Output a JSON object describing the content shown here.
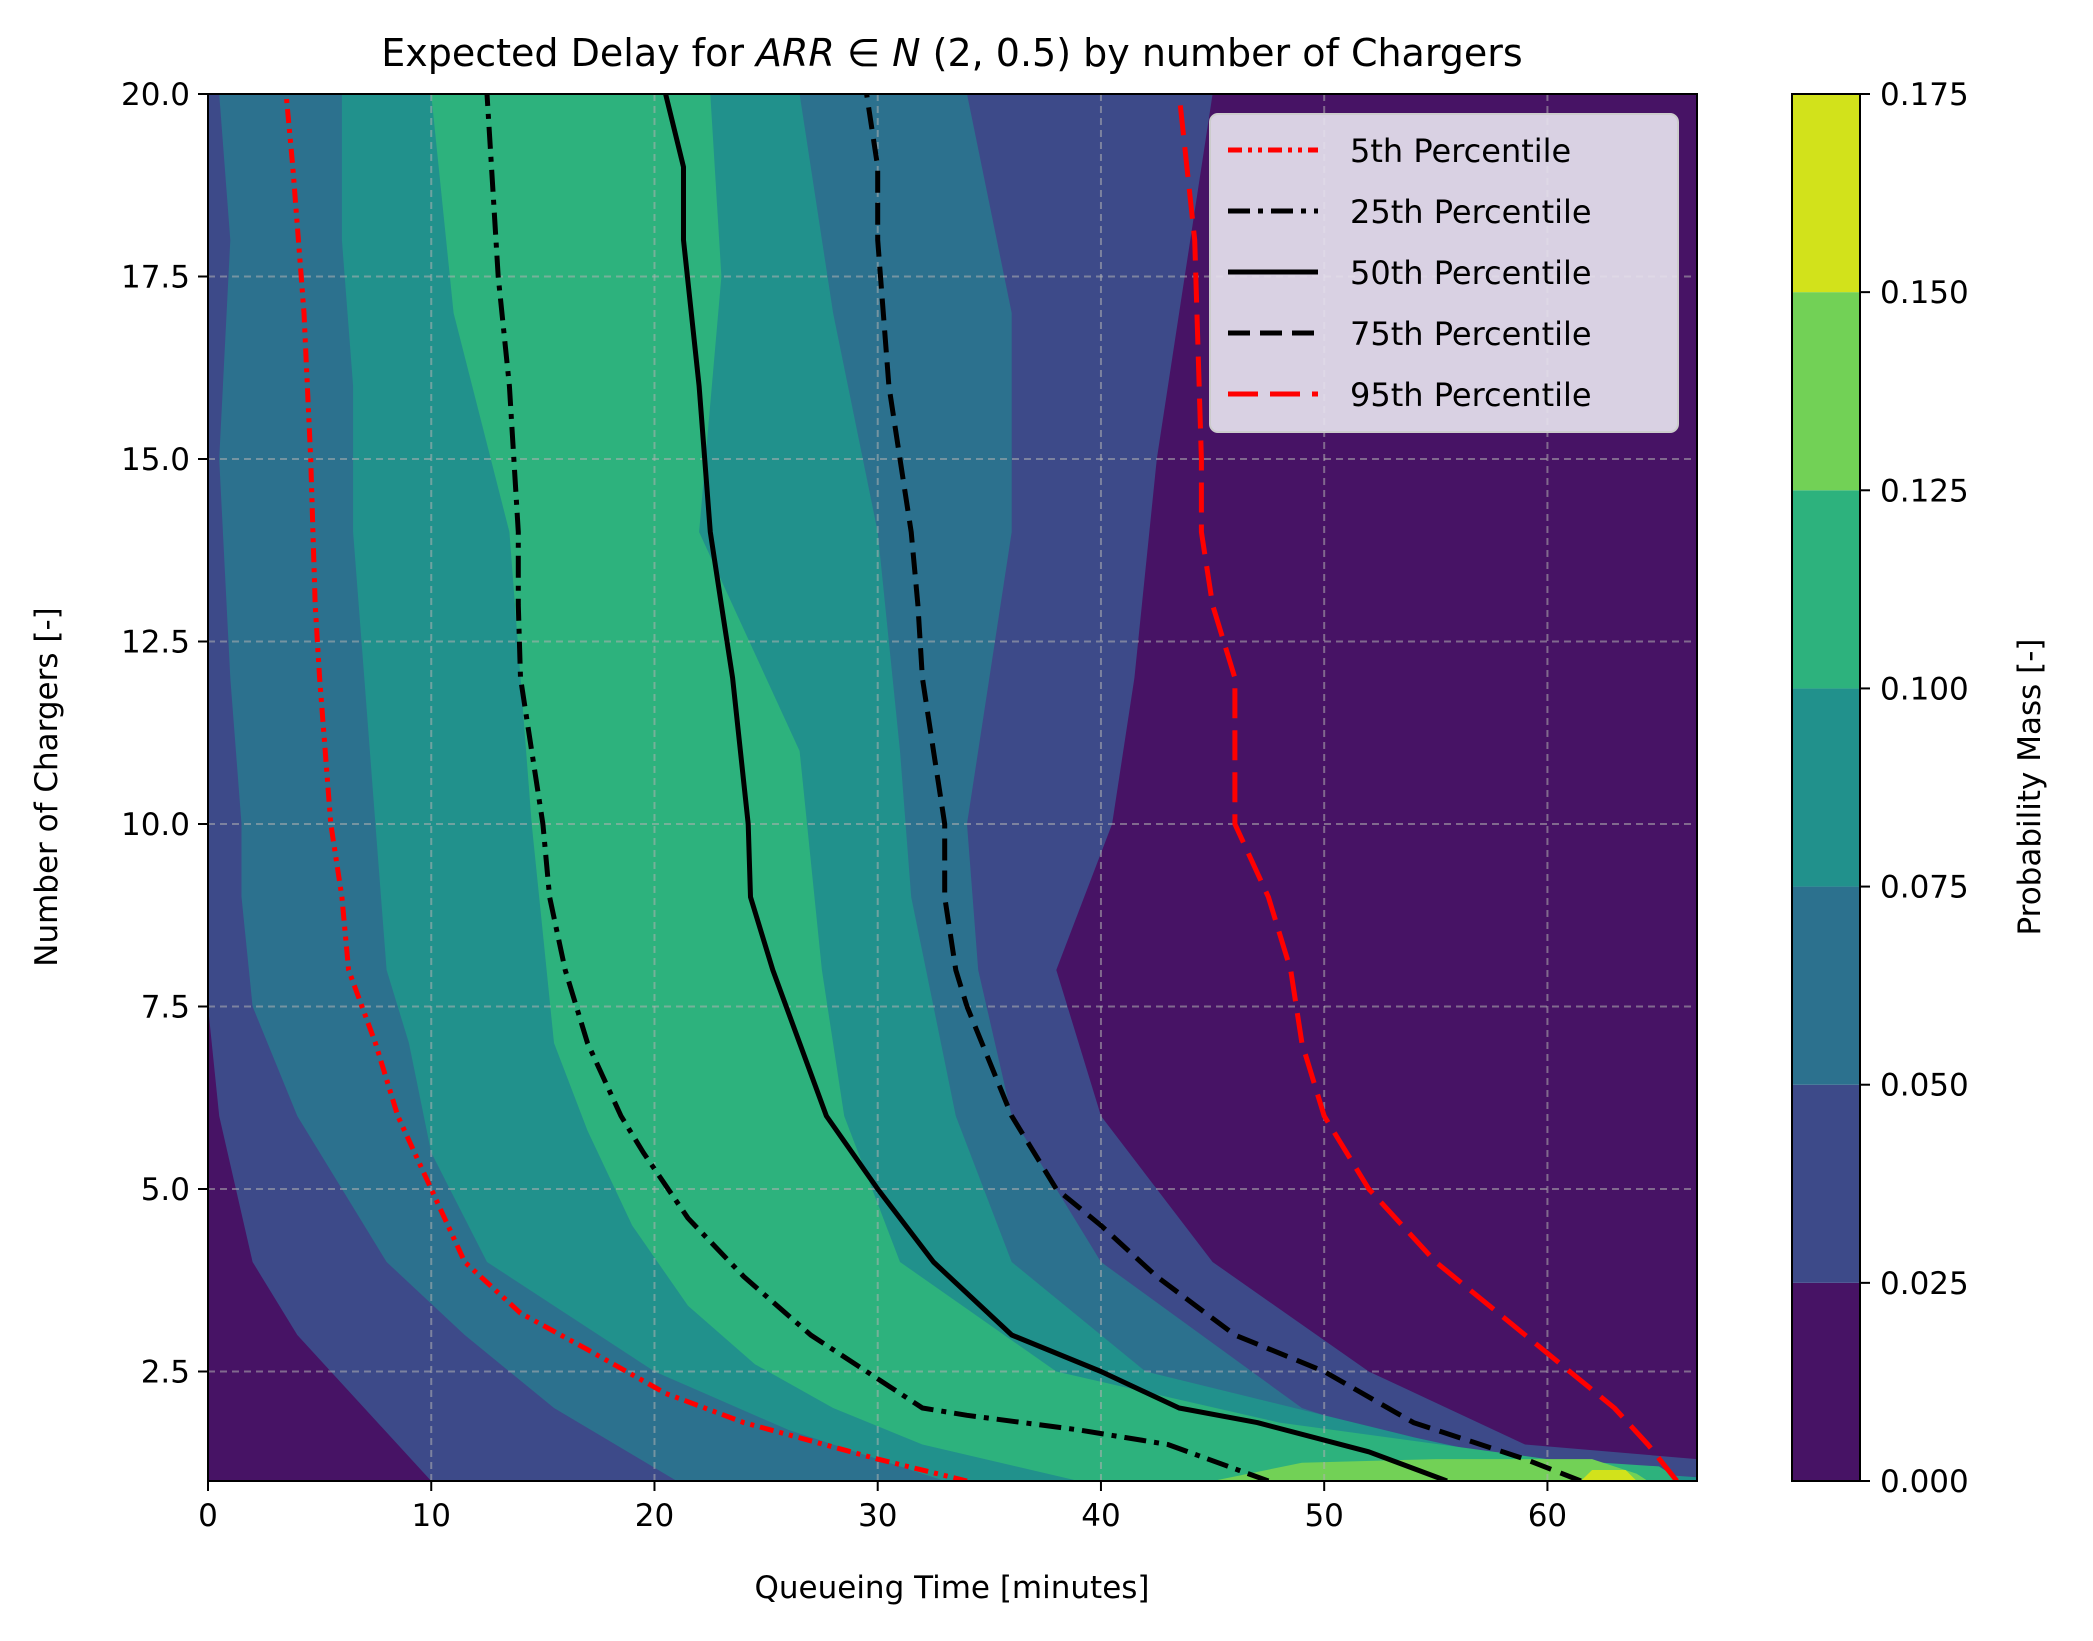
{
  "chart_data": {
    "type": "contourf",
    "title_parts": {
      "prefix": "Expected Delay for ",
      "math": "ARR",
      "member": " ∈ ",
      "math2": "N",
      "params": "(2, 0.5)",
      "suffix": " by number of Chargers"
    },
    "xlabel": "Queueing Time [minutes]",
    "ylabel": "Number of Chargers [-]",
    "xlim": [
      0,
      66.7
    ],
    "ylim": [
      1,
      20
    ],
    "xticks": [
      0,
      10,
      20,
      30,
      40,
      50,
      60
    ],
    "xtick_labels": [
      "0",
      "10",
      "20",
      "30",
      "40",
      "50",
      "60"
    ],
    "yticks": [
      2.5,
      5.0,
      7.5,
      10.0,
      12.5,
      15.0,
      17.5,
      20.0
    ],
    "ytick_labels": [
      "2.5",
      "5.0",
      "7.5",
      "10.0",
      "12.5",
      "15.0",
      "17.5",
      "20.0"
    ],
    "grid": true,
    "legend_position": "top-right",
    "colorbar": {
      "label": "Probability Mass [-]",
      "levels": [
        0.0,
        0.025,
        0.05,
        0.075,
        0.1,
        0.125,
        0.15,
        0.175
      ],
      "tick_labels": [
        "0.000",
        "0.025",
        "0.050",
        "0.075",
        "0.100",
        "0.125",
        "0.150",
        "0.175"
      ],
      "colors": [
        "#471365",
        "#3d4a89",
        "#2c718e",
        "#21918c",
        "#2db27d",
        "#72d156",
        "#d2e21b"
      ]
    },
    "series": [
      {
        "name": "5th Percentile",
        "color": "#ff0000",
        "style": "dash-dot-dot",
        "points": [
          [
            34.0,
            1
          ],
          [
            30.0,
            1.3
          ],
          [
            24.0,
            1.8
          ],
          [
            20.5,
            2.2
          ],
          [
            17.0,
            2.8
          ],
          [
            14.0,
            3.3
          ],
          [
            11.5,
            4.0
          ],
          [
            10.0,
            5.0
          ],
          [
            8.5,
            6.0
          ],
          [
            7.5,
            7.0
          ],
          [
            6.3,
            8.0
          ],
          [
            6.0,
            9.0
          ],
          [
            5.5,
            10.0
          ],
          [
            5.0,
            12.0
          ],
          [
            4.8,
            13.0
          ],
          [
            4.6,
            15.0
          ],
          [
            4.3,
            17.0
          ],
          [
            3.8,
            19.0
          ],
          [
            3.5,
            20.0
          ]
        ]
      },
      {
        "name": "25th Percentile",
        "color": "#000000",
        "style": "dash-dot",
        "points": [
          [
            47.5,
            1
          ],
          [
            43.0,
            1.5
          ],
          [
            39.0,
            1.7
          ],
          [
            34.0,
            1.9
          ],
          [
            32.0,
            2.0
          ],
          [
            30.0,
            2.4
          ],
          [
            27.0,
            3.0
          ],
          [
            24.0,
            3.8
          ],
          [
            21.5,
            4.6
          ],
          [
            19.5,
            5.5
          ],
          [
            18.5,
            6.0
          ],
          [
            17.0,
            7.0
          ],
          [
            16.0,
            8.0
          ],
          [
            15.3,
            9.0
          ],
          [
            15.0,
            10.0
          ],
          [
            14.5,
            11.0
          ],
          [
            14.0,
            12.0
          ],
          [
            13.9,
            13.0
          ],
          [
            13.9,
            14.0
          ],
          [
            13.5,
            16.0
          ],
          [
            13.0,
            17.5
          ],
          [
            12.7,
            19.0
          ],
          [
            12.5,
            20.0
          ]
        ]
      },
      {
        "name": "50th Percentile",
        "color": "#000000",
        "style": "solid",
        "points": [
          [
            55.5,
            1
          ],
          [
            52.0,
            1.4
          ],
          [
            47.0,
            1.8
          ],
          [
            43.5,
            2.0
          ],
          [
            40.0,
            2.5
          ],
          [
            36.0,
            3.0
          ],
          [
            32.5,
            4.0
          ],
          [
            30.0,
            5.0
          ],
          [
            27.7,
            6.0
          ],
          [
            26.5,
            7.0
          ],
          [
            25.3,
            8.0
          ],
          [
            24.3,
            9.0
          ],
          [
            24.2,
            10.0
          ],
          [
            23.5,
            12.0
          ],
          [
            23.0,
            13.0
          ],
          [
            22.5,
            14.0
          ],
          [
            22.0,
            16.0
          ],
          [
            21.3,
            18.0
          ],
          [
            21.3,
            19.0
          ],
          [
            20.5,
            20.0
          ]
        ]
      },
      {
        "name": "75th Percentile",
        "color": "#000000",
        "style": "dashed",
        "points": [
          [
            61.5,
            1
          ],
          [
            59.0,
            1.3
          ],
          [
            54.0,
            1.8
          ],
          [
            50.0,
            2.5
          ],
          [
            46.0,
            3.0
          ],
          [
            42.5,
            3.8
          ],
          [
            40.0,
            4.5
          ],
          [
            38.0,
            5.0
          ],
          [
            36.0,
            6.0
          ],
          [
            34.0,
            7.5
          ],
          [
            33.5,
            8.0
          ],
          [
            33.0,
            9.0
          ],
          [
            33.0,
            10.0
          ],
          [
            32.5,
            11.0
          ],
          [
            32.0,
            12.0
          ],
          [
            31.8,
            13.0
          ],
          [
            31.5,
            14.0
          ],
          [
            31.0,
            15.0
          ],
          [
            30.5,
            16.0
          ],
          [
            30.0,
            18.0
          ],
          [
            30.0,
            19.0
          ],
          [
            29.5,
            20.0
          ]
        ]
      },
      {
        "name": "95th Percentile",
        "color": "#ff0000",
        "style": "long-dash",
        "points": [
          [
            65.8,
            1
          ],
          [
            64.5,
            1.5
          ],
          [
            63.0,
            2.0
          ],
          [
            59.0,
            3.0
          ],
          [
            55.0,
            4.0
          ],
          [
            52.0,
            5.0
          ],
          [
            50.0,
            6.0
          ],
          [
            49.0,
            7.0
          ],
          [
            48.5,
            8.0
          ],
          [
            47.5,
            9.0
          ],
          [
            46.0,
            10.0
          ],
          [
            46.0,
            12.0
          ],
          [
            45.0,
            13.0
          ],
          [
            44.5,
            14.0
          ],
          [
            44.5,
            15.0
          ],
          [
            44.2,
            18.0
          ],
          [
            43.5,
            20.0
          ]
        ]
      }
    ],
    "contour_bands": [
      {
        "level_index": 1,
        "boundary": [
          [
            10.0,
            1
          ],
          [
            4.0,
            3.0
          ],
          [
            2.0,
            4.0
          ],
          [
            0.5,
            6.0
          ],
          [
            0,
            7.5
          ],
          [
            0,
            20
          ],
          [
            45.0,
            20
          ],
          [
            42.5,
            15.0
          ],
          [
            41.5,
            12.0
          ],
          [
            40.5,
            10.0
          ],
          [
            38.0,
            8.0
          ],
          [
            40.0,
            6.0
          ],
          [
            45.0,
            4.0
          ],
          [
            52.0,
            2.5
          ],
          [
            59.0,
            1.5
          ],
          [
            66.7,
            1.3
          ],
          [
            66.7,
            1
          ]
        ]
      },
      {
        "level_index": 2,
        "boundary": [
          [
            21.0,
            1
          ],
          [
            15.5,
            2.0
          ],
          [
            11.5,
            3.0
          ],
          [
            8.0,
            4.0
          ],
          [
            4.0,
            6.0
          ],
          [
            2.0,
            7.5
          ],
          [
            1.5,
            9.0
          ],
          [
            1.5,
            10.0
          ],
          [
            1.0,
            12.0
          ],
          [
            0.5,
            15.0
          ],
          [
            1.0,
            18.0
          ],
          [
            0.5,
            20
          ],
          [
            34.0,
            20
          ],
          [
            36.0,
            17.0
          ],
          [
            36.0,
            14.0
          ],
          [
            34.0,
            10.0
          ],
          [
            34.5,
            8.0
          ],
          [
            36.0,
            6.0
          ],
          [
            40.0,
            4.0
          ],
          [
            49.0,
            2.0
          ],
          [
            56.0,
            1.3
          ],
          [
            64.0,
            1.1
          ],
          [
            66.7,
            1
          ]
        ]
      },
      {
        "level_index": 3,
        "boundary": [
          [
            33.0,
            1
          ],
          [
            26.0,
            1.7
          ],
          [
            20.0,
            2.5
          ],
          [
            16.0,
            3.3
          ],
          [
            12.5,
            4.0
          ],
          [
            10.0,
            5.5
          ],
          [
            9.0,
            7.0
          ],
          [
            8.0,
            8.0
          ],
          [
            7.5,
            10.0
          ],
          [
            7.0,
            12.0
          ],
          [
            6.5,
            14.0
          ],
          [
            6.5,
            16.0
          ],
          [
            6.0,
            18.0
          ],
          [
            6.0,
            20
          ],
          [
            26.5,
            20
          ],
          [
            28.0,
            17.0
          ],
          [
            30.0,
            14.0
          ],
          [
            31.0,
            11.0
          ],
          [
            31.5,
            9.0
          ],
          [
            33.5,
            6.0
          ],
          [
            36.0,
            4.0
          ],
          [
            42.0,
            2.5
          ],
          [
            54.0,
            1.6
          ],
          [
            60.0,
            1.2
          ],
          [
            66.7,
            1.05
          ],
          [
            66.7,
            1
          ]
        ]
      },
      {
        "level_index": 4,
        "boundary": [
          [
            39.0,
            1
          ],
          [
            32.0,
            1.5
          ],
          [
            28.0,
            2.0
          ],
          [
            24.5,
            2.6
          ],
          [
            21.5,
            3.4
          ],
          [
            19.0,
            4.5
          ],
          [
            17.0,
            5.8
          ],
          [
            15.5,
            7.0
          ],
          [
            15.0,
            8.5
          ],
          [
            14.5,
            10.0
          ],
          [
            14.0,
            12.0
          ],
          [
            13.5,
            14.0
          ],
          [
            11.0,
            17.0
          ],
          [
            10.0,
            20
          ],
          [
            22.5,
            20
          ],
          [
            23.0,
            17.5
          ],
          [
            22.0,
            14.0
          ],
          [
            26.5,
            11.0
          ],
          [
            27.5,
            8.0
          ],
          [
            28.5,
            6.0
          ],
          [
            31.0,
            4.0
          ],
          [
            38.0,
            2.5
          ],
          [
            48.0,
            1.8
          ],
          [
            60.0,
            1.3
          ],
          [
            65.0,
            1.2
          ],
          [
            66.0,
            1
          ]
        ]
      },
      {
        "level_index": 5,
        "boundary": [
          [
            45.0,
            1
          ],
          [
            49.0,
            1.25
          ],
          [
            55.0,
            1.3
          ],
          [
            62.0,
            1.3
          ],
          [
            64.0,
            1.1
          ],
          [
            64.5,
            1
          ]
        ]
      },
      {
        "level_index": 6,
        "boundary": [
          [
            61.5,
            1
          ],
          [
            62.0,
            1.15
          ],
          [
            63.5,
            1.15
          ],
          [
            64.0,
            1
          ]
        ]
      }
    ]
  }
}
